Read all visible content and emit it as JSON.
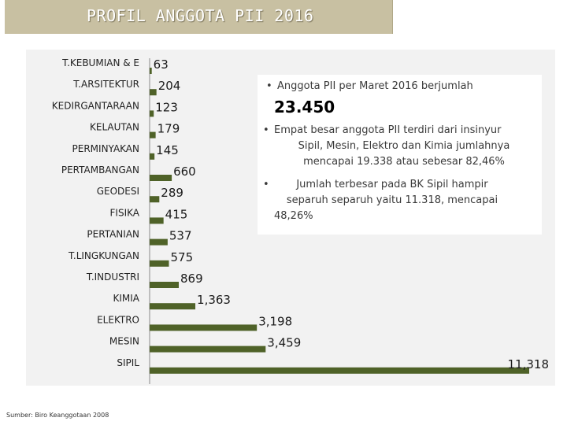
{
  "header": {
    "title": "PROFIL ANGGOTA PII 2016"
  },
  "chart_data": {
    "type": "bar",
    "orientation": "horizontal",
    "title": "PROFIL ANGGOTA PII 2016",
    "categories": [
      "T.KEBUMIAN & E",
      "T.ARSITEKTUR",
      "KEDIRGANTARAAN",
      "KELAUTAN",
      "PERMINYAKAN",
      "PERTAMBANGAN",
      "GEODESI",
      "FISIKA",
      "PERTANIAN",
      "T.LINGKUNGAN",
      "T.INDUSTRI",
      "KIMIA",
      "ELEKTRO",
      "MESIN",
      "SIPIL"
    ],
    "values": [
      63,
      204,
      123,
      179,
      145,
      660,
      289,
      415,
      537,
      575,
      869,
      1363,
      3198,
      3459,
      11318
    ],
    "value_labels": [
      "63",
      "204",
      "123",
      "179",
      "145",
      "660",
      "289",
      "415",
      "537",
      "575",
      "869",
      "1,363",
      "3,198",
      "3,459",
      "11,318"
    ],
    "xlim": [
      0,
      11318
    ],
    "bar_color": "#4f6228",
    "grid": false
  },
  "info": {
    "bullet1": "Anggota PII per Maret 2016 berjumlah",
    "total": "23.450",
    "bullet2_lines": [
      "Empat besar anggota PII terdiri dari insinyur",
      "Sipil, Mesin, Elektro dan Kimia jumlahnya",
      "mencapai 19.338 atau sebesar  82,46%"
    ],
    "bullet3_lines": [
      "Jumlah terbesar pada BK Sipil hampir",
      "separuh separuh yaitu 11.318, mencapai",
      "48,26%"
    ],
    "bullet_char": "•"
  },
  "source": "Sumber: Biro Keanggotaan 2008"
}
